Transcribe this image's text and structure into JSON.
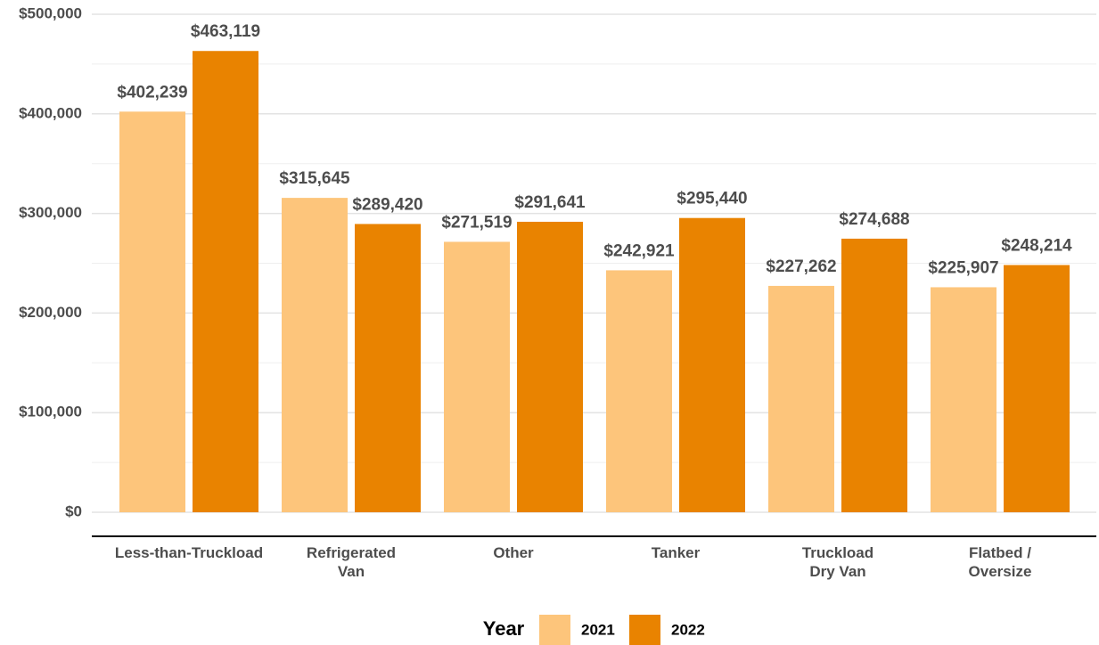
{
  "chart_data": {
    "type": "bar",
    "categories": [
      "Less-than-Truckload",
      "Refrigerated\nVan",
      "Other",
      "Tanker",
      "Truckload\nDry Van",
      "Flatbed /\nOversize"
    ],
    "series": [
      {
        "name": "2021",
        "color": "#fdc57b",
        "values": [
          402239,
          315645,
          271519,
          242921,
          227262,
          225907
        ],
        "value_labels": [
          "$402,239",
          "$315,645",
          "$271,519",
          "$242,921",
          "$227,262",
          "$225,907"
        ]
      },
      {
        "name": "2022",
        "color": "#e98300",
        "values": [
          463119,
          289420,
          291641,
          295440,
          274688,
          248214
        ],
        "value_labels": [
          "$463,119",
          "$289,420",
          "$291,641",
          "$295,440",
          "$274,688",
          "$248,214"
        ]
      }
    ],
    "legend_title": "Year",
    "ylim": [
      0,
      500000
    ],
    "yticks": [
      {
        "value": 0,
        "label": "$0"
      },
      {
        "value": 100000,
        "label": "$100,000"
      },
      {
        "value": 200000,
        "label": "$200,000"
      },
      {
        "value": 300000,
        "label": "$300,000"
      },
      {
        "value": 400000,
        "label": "$400,000"
      },
      {
        "value": 500000,
        "label": "$500,000"
      }
    ],
    "grid": true,
    "legend": "bottom"
  }
}
